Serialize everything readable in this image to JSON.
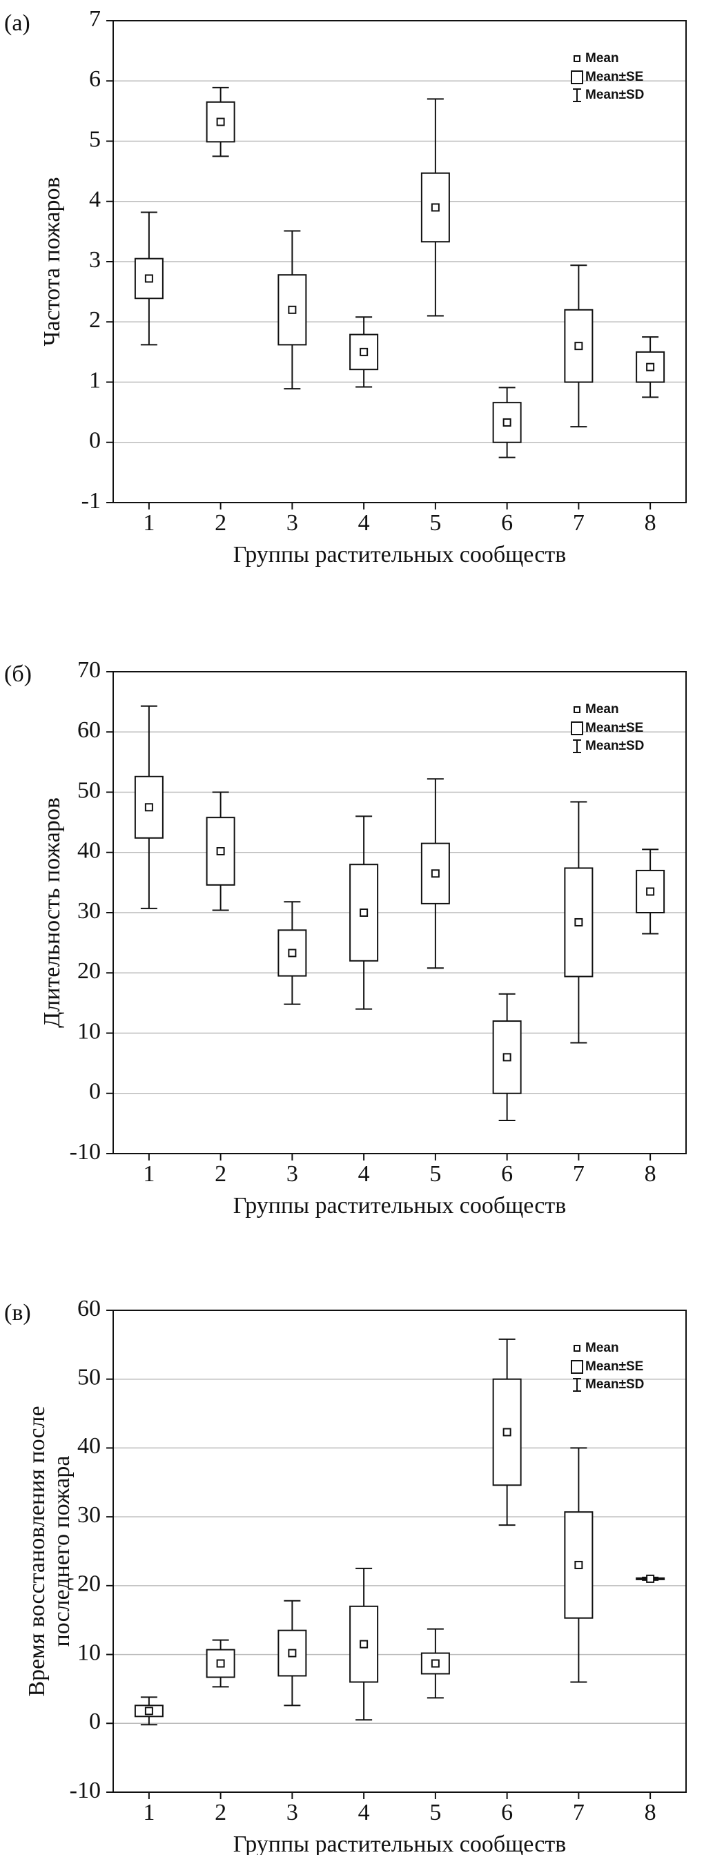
{
  "chart_data": [
    {
      "type": "box",
      "label": "(а)",
      "ylabel": [
        "Частота пожаров"
      ],
      "xlabel": "Группы растительных сообществ",
      "categories": [
        "1",
        "2",
        "3",
        "4",
        "5",
        "6",
        "7",
        "8"
      ],
      "series": [
        {
          "name": "Mean",
          "values": [
            2.72,
            5.32,
            2.2,
            1.5,
            3.9,
            0.33,
            1.6,
            1.25
          ]
        },
        {
          "name": "Mean±SE",
          "values": [
            0.33,
            0.33,
            0.58,
            0.29,
            0.57,
            0.33,
            0.6,
            0.25
          ]
        },
        {
          "name": "Mean±SD",
          "values": [
            1.1,
            0.57,
            1.31,
            0.58,
            1.8,
            0.58,
            1.34,
            0.5
          ]
        }
      ],
      "ylim": [
        -1,
        7
      ],
      "yticks": [
        -1,
        0,
        1,
        2,
        3,
        4,
        5,
        6,
        7
      ],
      "grid": true
    },
    {
      "type": "box",
      "label": "(б)",
      "ylabel": [
        "Длительность пожаров"
      ],
      "xlabel": "Группы растительных сообществ",
      "categories": [
        "1",
        "2",
        "3",
        "4",
        "5",
        "6",
        "7",
        "8"
      ],
      "series": [
        {
          "name": "Mean",
          "values": [
            47.5,
            40.2,
            23.3,
            30,
            36.5,
            6,
            28.4,
            33.5
          ]
        },
        {
          "name": "Mean±SE",
          "values": [
            5.1,
            5.6,
            3.8,
            8,
            5,
            6,
            9,
            3.5
          ]
        },
        {
          "name": "Mean±SD",
          "values": [
            16.8,
            9.8,
            8.5,
            16,
            15.7,
            10.5,
            20,
            7
          ]
        }
      ],
      "ylim": [
        -10,
        70
      ],
      "yticks": [
        -10,
        0,
        10,
        20,
        30,
        40,
        50,
        60,
        70
      ],
      "grid": true
    },
    {
      "type": "box",
      "label": "(в)",
      "ylabel": [
        "Время восстановления после",
        "последнего пожара"
      ],
      "xlabel": "Группы растительных сообществ",
      "categories": [
        "1",
        "2",
        "3",
        "4",
        "5",
        "6",
        "7",
        "8"
      ],
      "series": [
        {
          "name": "Mean",
          "values": [
            1.8,
            8.7,
            10.2,
            11.5,
            8.7,
            42.3,
            23,
            21
          ]
        },
        {
          "name": "Mean±SE",
          "values": [
            0.8,
            2,
            3.3,
            5.5,
            1.5,
            7.7,
            7.7,
            0.1
          ]
        },
        {
          "name": "Mean±SD",
          "values": [
            2,
            3.4,
            7.6,
            11,
            5,
            13.5,
            17,
            0.2
          ]
        }
      ],
      "ylim": [
        -10,
        60
      ],
      "yticks": [
        -10,
        0,
        10,
        20,
        30,
        40,
        50,
        60
      ],
      "grid": true
    }
  ]
}
